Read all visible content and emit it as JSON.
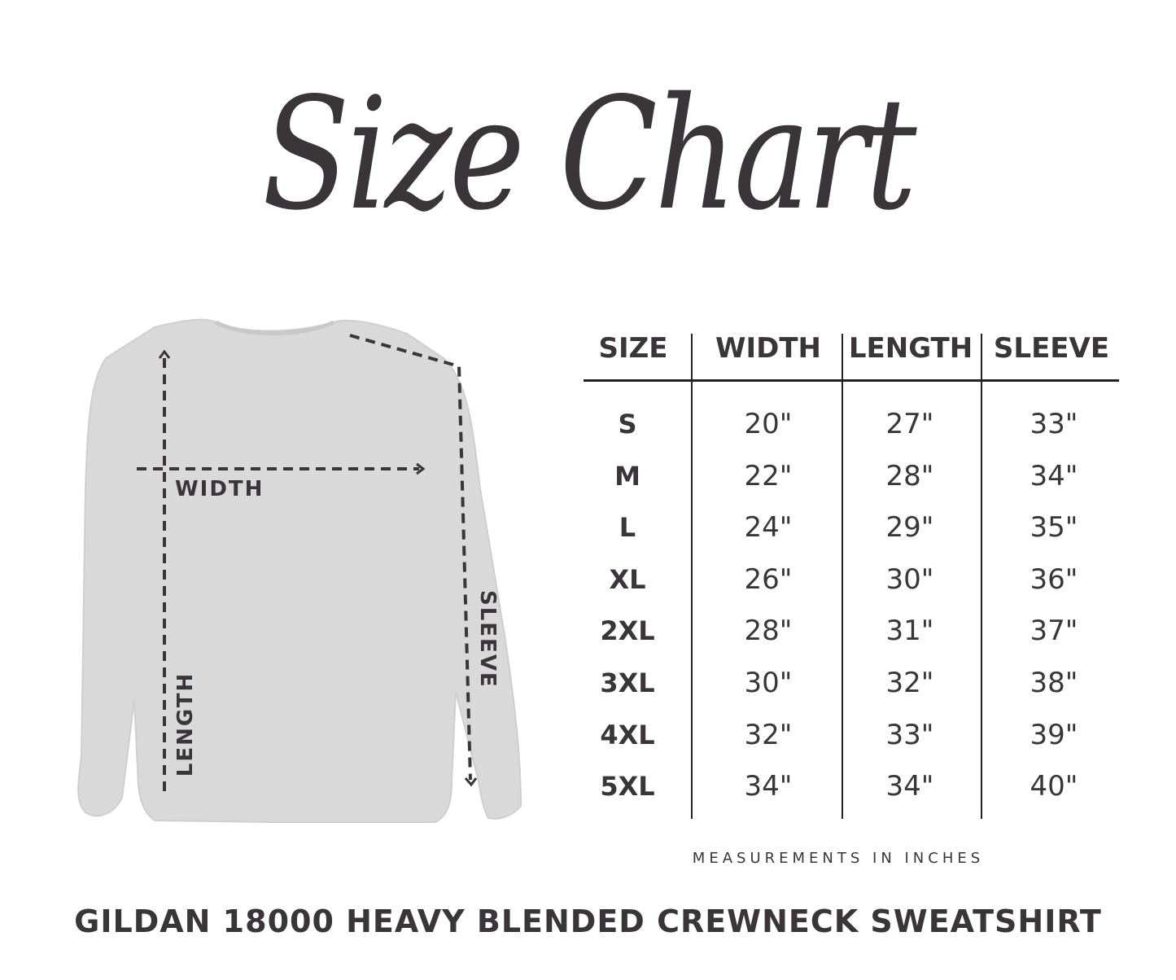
{
  "title": "Size Chart",
  "diagram": {
    "width_label": "WIDTH",
    "length_label": "LENGTH",
    "sleeve_label": "SLEEVE"
  },
  "table": {
    "headers": [
      "SIZE",
      "WIDTH",
      "LENGTH",
      "SLEEVE"
    ],
    "rows": [
      [
        "S",
        "20\"",
        "27\"",
        "33\""
      ],
      [
        "M",
        "22\"",
        "28\"",
        "34\""
      ],
      [
        "L",
        "24\"",
        "29\"",
        "35\""
      ],
      [
        "XL",
        "26\"",
        "30\"",
        "36\""
      ],
      [
        "2XL",
        "28\"",
        "31\"",
        "37\""
      ],
      [
        "3XL",
        "30\"",
        "32\"",
        "38\""
      ],
      [
        "4XL",
        "32\"",
        "33\"",
        "39\""
      ],
      [
        "5XL",
        "34\"",
        "34\"",
        "40\""
      ]
    ]
  },
  "caption": "MEASUREMENTS IN INCHES",
  "footer": "GILDAN 18000 HEAVY BLENDED CREWNECK SWEATSHIRT",
  "colors": {
    "text": "#3a3539",
    "shirt": "#d9d9d9"
  }
}
